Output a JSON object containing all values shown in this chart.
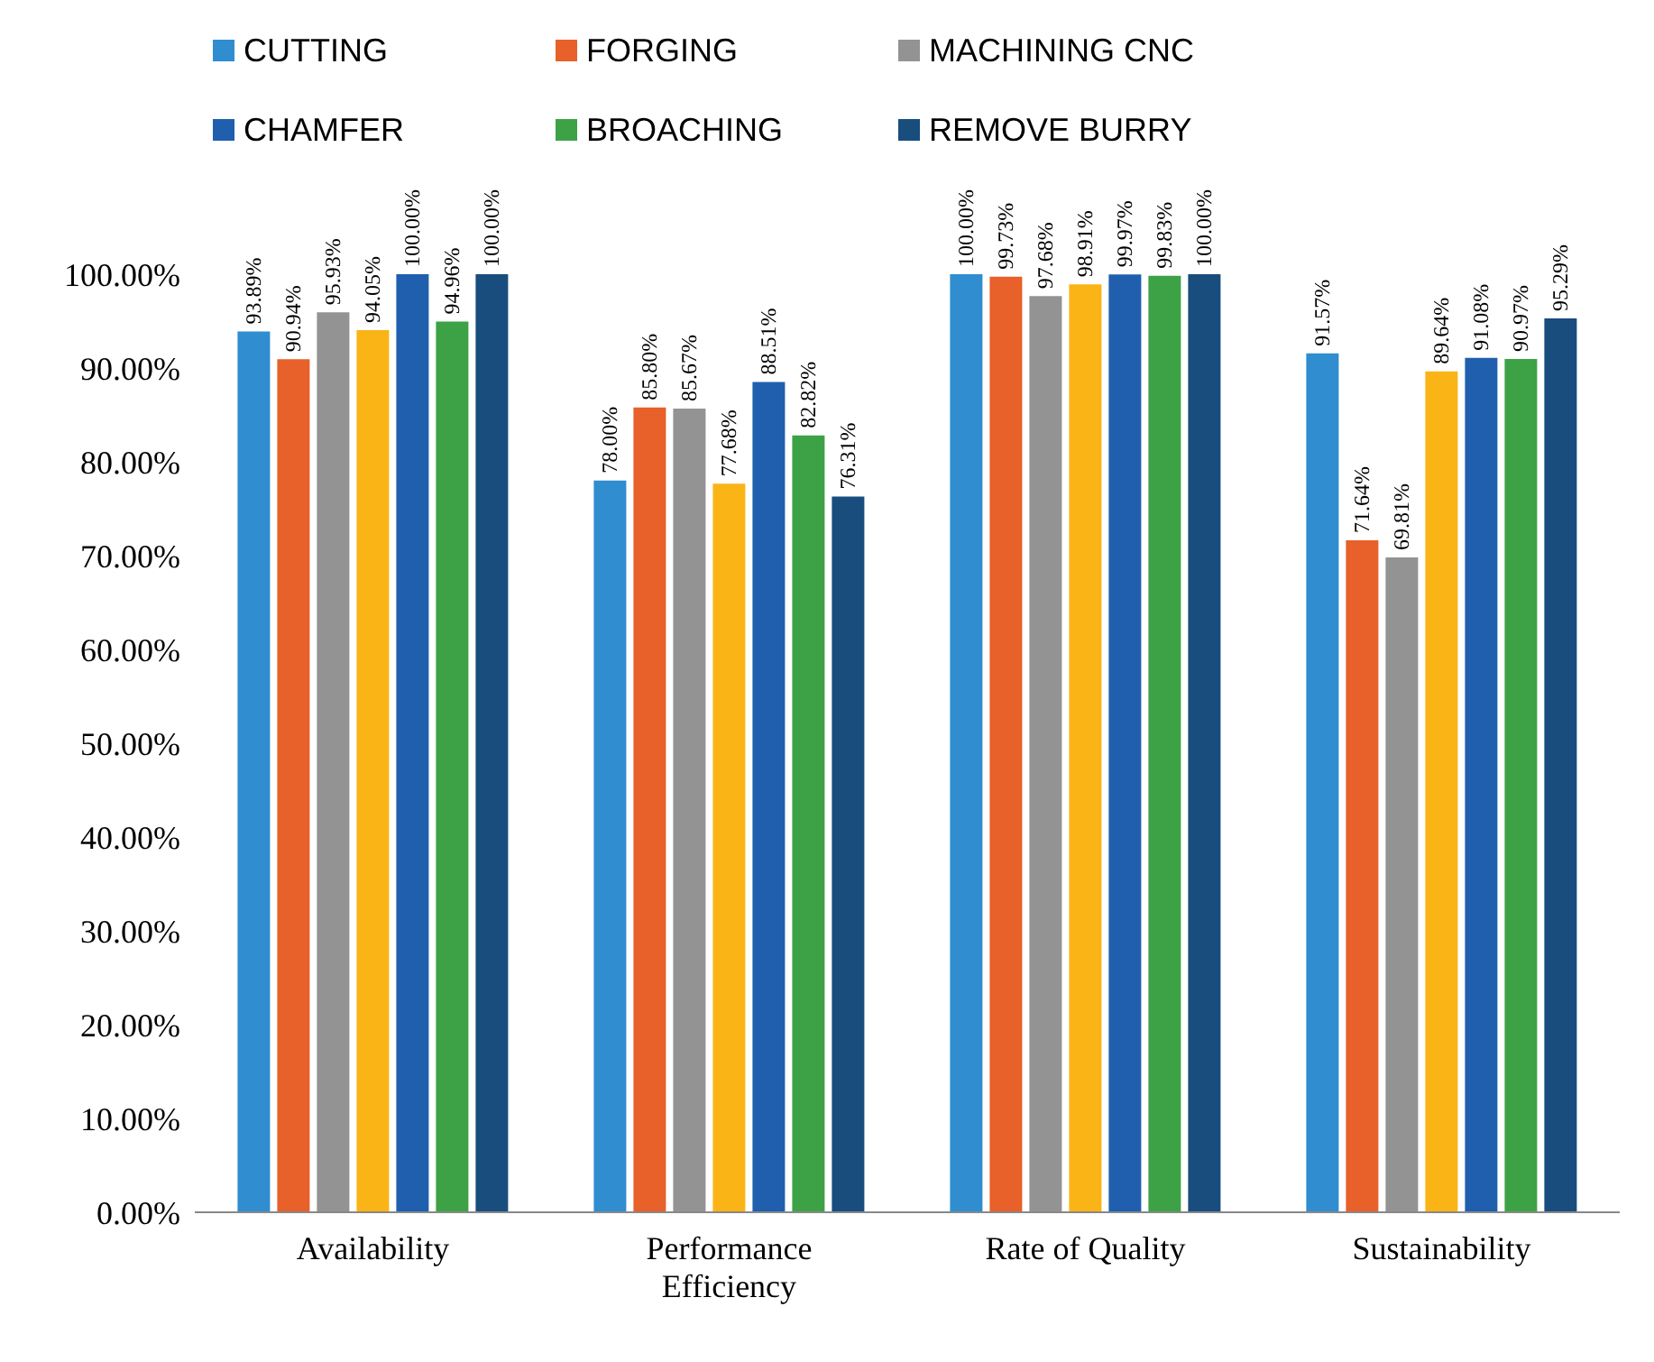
{
  "chart_data": {
    "type": "bar",
    "categories": [
      "Availability",
      "Performance Efficiency",
      "Rate of Quality",
      "Sustainability"
    ],
    "series": [
      {
        "name": "CUTTING",
        "color": "#2f8dd0",
        "values": [
          93.89,
          78.0,
          100.0,
          91.57
        ],
        "value_labels": [
          "93.89%",
          "78.00%",
          "100.00%",
          "91.57%"
        ]
      },
      {
        "name": "FORGING",
        "color": "#e8602a",
        "values": [
          90.94,
          85.8,
          99.73,
          71.64
        ],
        "value_labels": [
          "90.94%",
          "85.80%",
          "99.73%",
          "71.64%"
        ]
      },
      {
        "name": "MACHINING CNC",
        "color": "#939393",
        "values": [
          95.93,
          85.67,
          97.68,
          69.81
        ],
        "value_labels": [
          "95.93%",
          "85.67%",
          "97.68%",
          "69.81%"
        ]
      },
      {
        "color": "#fbb416",
        "values": [
          94.05,
          77.68,
          98.91,
          89.64
        ],
        "value_labels": [
          "94.05%",
          "77.68%",
          "98.91%",
          "89.64%"
        ]
      },
      {
        "name": "CHAMFER",
        "color": "#1f5fae",
        "values": [
          100.0,
          88.51,
          99.97,
          91.08
        ],
        "value_labels": [
          "100.00%",
          "88.51%",
          "99.97%",
          "91.08%"
        ]
      },
      {
        "name": "BROACHING",
        "color": "#3da246",
        "values": [
          94.96,
          82.82,
          99.83,
          90.97
        ],
        "value_labels": [
          "94.96%",
          "82.82%",
          "99.83%",
          "90.97%"
        ]
      },
      {
        "name": "REMOVE BURRY",
        "color": "#184d7e",
        "values": [
          100.0,
          76.31,
          100.0,
          95.29
        ],
        "value_labels": [
          "100.00%",
          "76.31%",
          "100.00%",
          "95.29%"
        ]
      }
    ],
    "ylim": [
      0,
      100
    ],
    "yticks": [
      {
        "value": 0,
        "label": "0.00%"
      },
      {
        "value": 10,
        "label": "10.00%"
      },
      {
        "value": 20,
        "label": "20.00%"
      },
      {
        "value": 30,
        "label": "30.00%"
      },
      {
        "value": 40,
        "label": "40.00%"
      },
      {
        "value": 50,
        "label": "50.00%"
      },
      {
        "value": 60,
        "label": "60.00%"
      },
      {
        "value": 70,
        "label": "70.00%"
      },
      {
        "value": 80,
        "label": "80.00%"
      },
      {
        "value": 90,
        "label": "90.00%"
      },
      {
        "value": 100,
        "label": "100.00%"
      }
    ],
    "grid": false,
    "legend": "top left"
  }
}
